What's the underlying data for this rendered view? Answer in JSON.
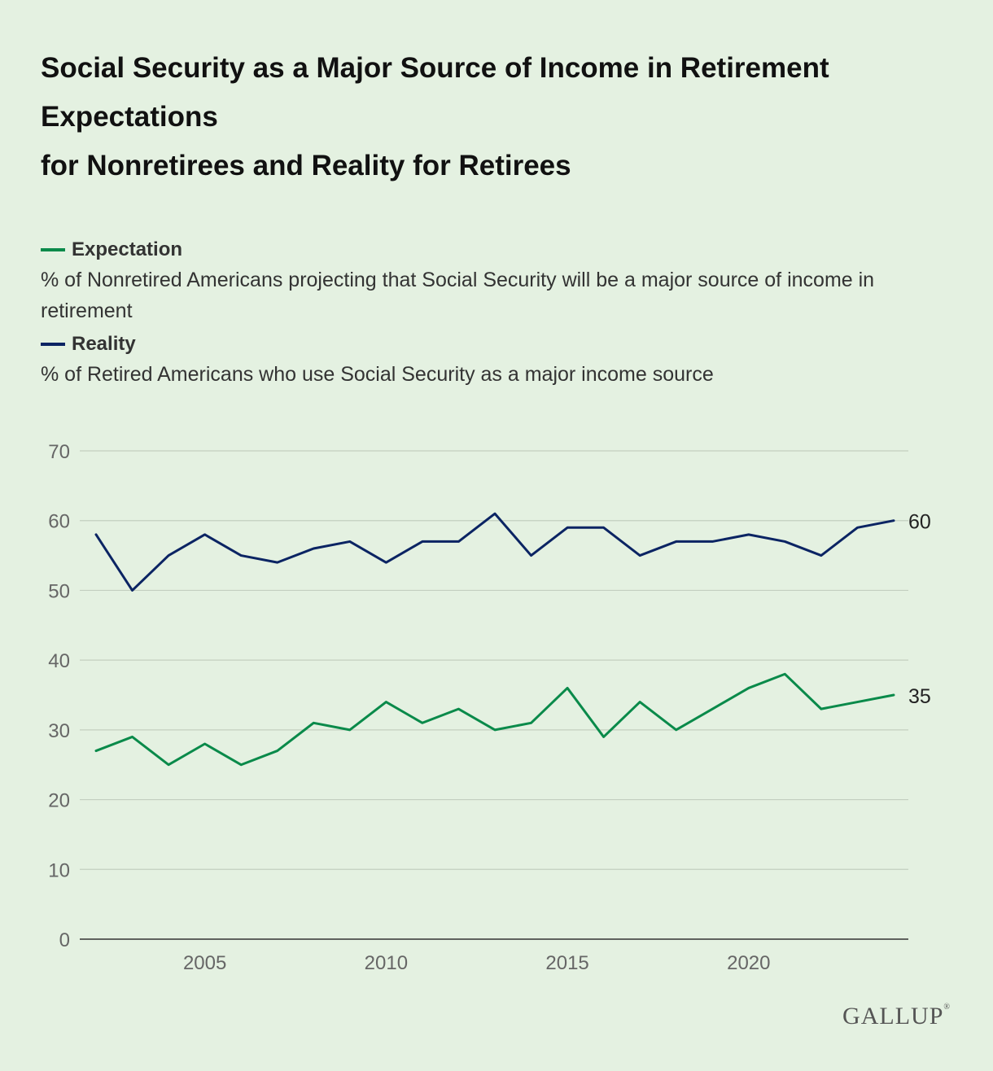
{
  "title_lines": [
    "Social Security as a Major Source of Income in Retirement",
    "Expectations",
    "for Nonretirees and Reality for Retirees"
  ],
  "legend": [
    {
      "label": "Expectation",
      "description": "% of Nonretired Americans projecting that Social Security will be a major source of income in retirement",
      "color": "#0a8a4a"
    },
    {
      "label": "Reality",
      "description": "% of Retired Americans who use Social Security as a major income source",
      "color": "#0b2463"
    }
  ],
  "brand": "GALLUP",
  "chart_data": {
    "type": "line",
    "x": [
      2002,
      2003,
      2004,
      2005,
      2006,
      2007,
      2008,
      2009,
      2010,
      2011,
      2012,
      2013,
      2014,
      2015,
      2016,
      2017,
      2018,
      2019,
      2020,
      2021,
      2022,
      2023,
      2024
    ],
    "series": [
      {
        "name": "Expectation",
        "color": "#0a8a4a",
        "values": [
          27,
          29,
          25,
          28,
          25,
          27,
          31,
          30,
          34,
          31,
          33,
          30,
          31,
          36,
          29,
          34,
          30,
          33,
          36,
          38,
          33,
          34,
          35
        ],
        "end_label": "35"
      },
      {
        "name": "Reality",
        "color": "#0b2463",
        "values": [
          58,
          50,
          55,
          58,
          55,
          54,
          56,
          57,
          54,
          57,
          57,
          61,
          55,
          59,
          59,
          55,
          57,
          57,
          58,
          57,
          55,
          59,
          60
        ],
        "end_label": "60"
      }
    ],
    "ylim": [
      0,
      70
    ],
    "yticks": [
      0,
      10,
      20,
      30,
      40,
      50,
      60,
      70
    ],
    "xticks": [
      2005,
      2010,
      2015,
      2020
    ],
    "xlim": [
      2002,
      2024
    ],
    "grid": true,
    "legend_position": "top-left"
  }
}
